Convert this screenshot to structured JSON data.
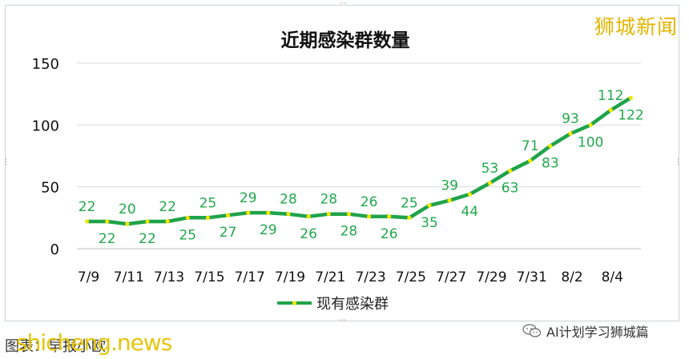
{
  "watermark_top": "狮城新闻",
  "source_text": "图表：早报小欧",
  "site_watermark": "shicheng.news",
  "wechat_label": "AI计划学习狮城篇",
  "chart_data": {
    "type": "line",
    "title": "近期感染群数量",
    "xlabel": "",
    "ylabel": "",
    "ylim": [
      0,
      150
    ],
    "yticks": [
      0,
      50,
      100,
      150
    ],
    "grid": true,
    "legend_position": "bottom",
    "line_color": "#1fa34a",
    "marker_color": "#f2e600",
    "label_color": "#22a84c",
    "x": [
      "7/9",
      "7/10",
      "7/11",
      "7/12",
      "7/13",
      "7/14",
      "7/15",
      "7/16",
      "7/17",
      "7/18",
      "7/19",
      "7/20",
      "7/21",
      "7/22",
      "7/23",
      "7/24",
      "7/25",
      "7/26",
      "7/27",
      "7/28",
      "7/29",
      "7/30",
      "7/31",
      "8/1",
      "8/2",
      "8/3",
      "8/4",
      "8/5"
    ],
    "xtick_labels": [
      "7/9",
      "7/11",
      "7/13",
      "7/15",
      "7/17",
      "7/19",
      "7/21",
      "7/23",
      "7/25",
      "7/27",
      "7/29",
      "7/31",
      "8/2",
      "8/4"
    ],
    "series": [
      {
        "name": "现有感染群",
        "values": [
          22,
          22,
          20,
          22,
          22,
          25,
          25,
          27,
          29,
          29,
          28,
          26,
          28,
          28,
          26,
          26,
          25,
          35,
          39,
          44,
          53,
          63,
          71,
          83,
          93,
          100,
          112,
          122
        ],
        "label_side": [
          "above",
          "below",
          "above",
          "below",
          "above",
          "below",
          "above",
          "below",
          "above",
          "below",
          "above",
          "below",
          "above",
          "below",
          "above",
          "below",
          "above",
          "below",
          "above",
          "below",
          "above",
          "below",
          "above",
          "below",
          "above",
          "below",
          "above",
          "below"
        ]
      }
    ]
  }
}
